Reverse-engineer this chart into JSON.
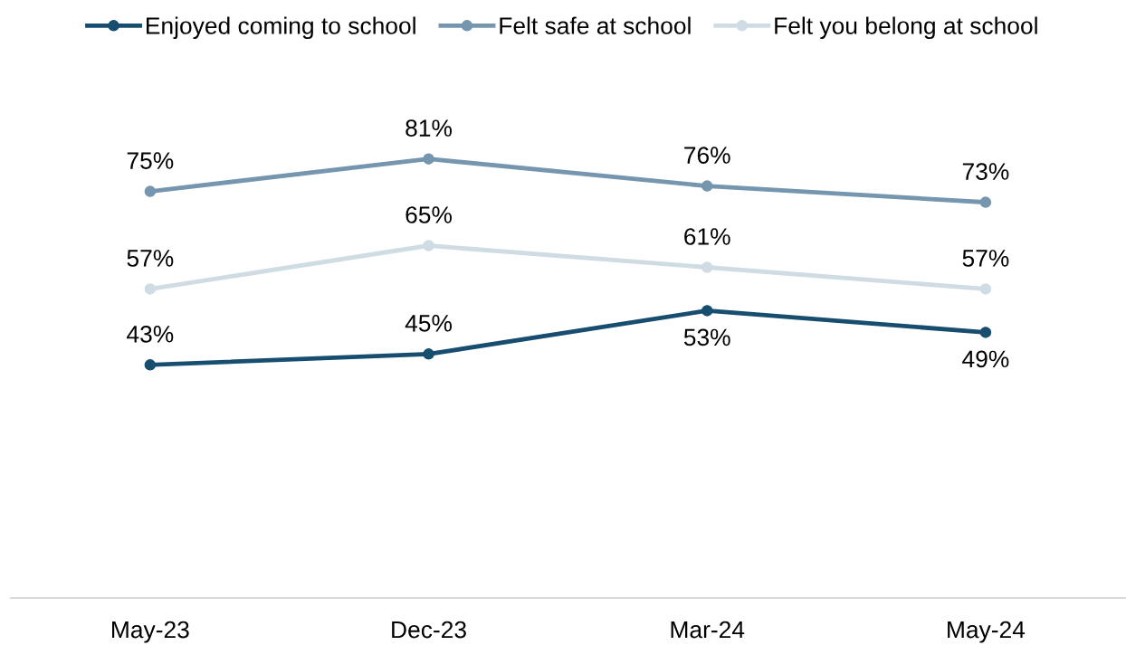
{
  "chart_data": {
    "type": "line",
    "categories": [
      "May-23",
      "Dec-23",
      "Mar-24",
      "May-24"
    ],
    "series": [
      {
        "name": "Enjoyed coming to school",
        "color": "#174e70",
        "values": [
          43,
          45,
          53,
          49
        ],
        "value_labels": [
          "43%",
          "45%",
          "53%",
          "49%"
        ]
      },
      {
        "name": "Felt safe at school",
        "color": "#7596ae",
        "values": [
          75,
          81,
          76,
          73
        ],
        "value_labels": [
          "75%",
          "81%",
          "76%",
          "73%"
        ]
      },
      {
        "name": "Felt you belong at school",
        "color": "#d0dce4",
        "values": [
          57,
          65,
          61,
          57
        ],
        "value_labels": [
          "57%",
          "65%",
          "61%",
          "57%"
        ]
      }
    ],
    "legend": "top",
    "marker": "circle",
    "line_style": "solid",
    "grid": false,
    "tick_labels": "x"
  }
}
